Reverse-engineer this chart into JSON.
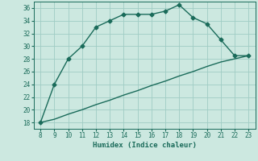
{
  "xlabel": "Humidex (Indice chaleur)",
  "x": [
    8,
    9,
    10,
    11,
    12,
    13,
    14,
    15,
    16,
    17,
    18,
    19,
    20,
    21,
    22,
    23
  ],
  "y_main": [
    18,
    24,
    28,
    30,
    33,
    34,
    35,
    35,
    35,
    35.5,
    36.5,
    34.5,
    33.5,
    31,
    28.5,
    28.5
  ],
  "y_line2": [
    18,
    18.5,
    19.3,
    20.0,
    20.8,
    21.5,
    22.3,
    23.0,
    23.8,
    24.5,
    25.3,
    26.0,
    26.8,
    27.5,
    28.0,
    28.5
  ],
  "xlim": [
    7.5,
    23.5
  ],
  "ylim": [
    17,
    37
  ],
  "yticks": [
    18,
    20,
    22,
    24,
    26,
    28,
    30,
    32,
    34,
    36
  ],
  "xticks": [
    8,
    9,
    10,
    11,
    12,
    13,
    14,
    15,
    16,
    17,
    18,
    19,
    20,
    21,
    22,
    23
  ],
  "line_color": "#1a6b5a",
  "bg_color": "#cce8e0",
  "grid_color": "#9fccc4",
  "marker": "D",
  "marker_size": 2.5,
  "linewidth": 1.0
}
